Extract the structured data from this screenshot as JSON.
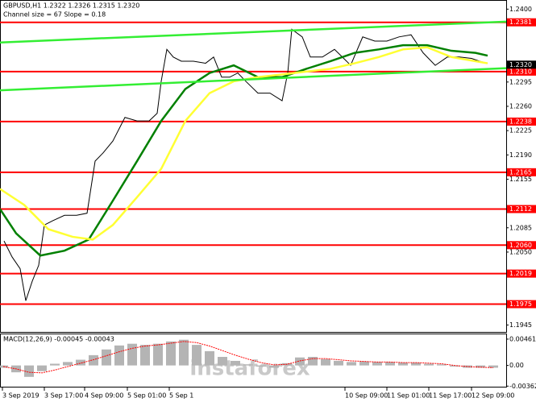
{
  "chart_data": [
    {
      "type": "line",
      "title": "GBPUSD,H1  1.2322 1.2326 1.2315 1.2320",
      "subtitle": "Channel size = 67 Slope = 0.18",
      "watermark": "instaforex",
      "xlim": [
        0,
        628
      ],
      "ylim": [
        1.1935,
        1.2412
      ],
      "yticks": [
        {
          "value": 1.24,
          "label": "1.2400"
        },
        {
          "value": 1.2295,
          "label": "1.2295"
        },
        {
          "value": 1.226,
          "label": "1.2260"
        },
        {
          "value": 1.2225,
          "label": "1.2225"
        },
        {
          "value": 1.219,
          "label": "1.2190"
        },
        {
          "value": 1.2155,
          "label": "1.2155"
        },
        {
          "value": 1.2085,
          "label": "1.2085"
        },
        {
          "value": 1.205,
          "label": "1.2050"
        },
        {
          "value": 1.1945,
          "label": "1.1945"
        }
      ],
      "xticks": [
        {
          "value": 3,
          "label": "3 Sep 2019"
        },
        {
          "value": 55,
          "label": "3 Sep 17:00"
        },
        {
          "value": 105,
          "label": "4 Sep 09:00"
        },
        {
          "value": 158,
          "label": "5 Sep 01:00"
        },
        {
          "value": 210,
          "label": "5 Sep 1"
        },
        {
          "value": 428,
          "label": "10 Sep 09:00"
        },
        {
          "value": 480,
          "label": "11 Sep 01:00"
        },
        {
          "value": 532,
          "label": "11 Sep 17:00"
        },
        {
          "value": 585,
          "label": "12 Sep 09:00"
        }
      ],
      "series": [
        {
          "color": "#000000",
          "x": [
            5,
            15,
            25,
            32,
            40,
            48,
            55,
            65,
            80,
            95,
            108,
            118,
            128,
            140,
            155,
            170,
            185,
            195,
            200,
            207,
            215,
            225,
            240,
            255,
            265,
            275,
            285,
            295,
            305,
            320,
            335,
            350,
            357,
            362,
            375,
            385,
            400,
            415,
            430,
            435,
            450,
            465,
            480,
            495,
            510,
            525,
            540,
            555,
            570,
            585,
            595,
            605
          ],
          "values": [
            1.2066,
            1.2043,
            1.2026,
            1.198,
            1.2008,
            1.2031,
            1.2089,
            1.2095,
            1.2103,
            1.2103,
            1.2106,
            1.2181,
            1.2193,
            1.221,
            1.2244,
            1.2239,
            1.2239,
            1.225,
            1.2296,
            1.2342,
            1.2331,
            1.2325,
            1.2325,
            1.2322,
            1.2331,
            1.2302,
            1.2302,
            1.2308,
            1.2296,
            1.2279,
            1.2279,
            1.2268,
            1.2308,
            1.2371,
            1.236,
            1.2331,
            1.2331,
            1.2342,
            1.2325,
            1.2319,
            1.236,
            1.2354,
            1.2354,
            1.236,
            1.2363,
            1.2337,
            1.2319,
            1.2331,
            1.2331,
            1.2329,
            1.2325,
            1.2322
          ]
        },
        {
          "color": "#008000",
          "x": [
            0,
            20,
            50,
            80,
            110,
            140,
            170,
            200,
            230,
            260,
            290,
            320,
            350,
            380,
            410,
            440,
            470,
            500,
            530,
            560,
            590,
            605
          ],
          "values": [
            1.2112,
            1.2077,
            1.2045,
            1.2052,
            1.2068,
            1.2124,
            1.2181,
            1.2239,
            1.2285,
            1.2308,
            1.2319,
            1.2302,
            1.2302,
            1.2314,
            1.2325,
            1.2337,
            1.2342,
            1.2348,
            1.2348,
            1.234,
            1.2337,
            1.2333
          ]
        },
        {
          "color": "#ffff33",
          "x": [
            0,
            30,
            60,
            90,
            115,
            140,
            170,
            200,
            230,
            260,
            290,
            320,
            350,
            380,
            410,
            440,
            470,
            500,
            530,
            560,
            590,
            605
          ],
          "values": [
            1.2141,
            1.2118,
            1.2083,
            1.2072,
            1.2068,
            1.2089,
            1.2129,
            1.217,
            1.2239,
            1.2279,
            1.2296,
            1.2302,
            1.2306,
            1.231,
            1.2314,
            1.2322,
            1.2331,
            1.2342,
            1.2345,
            1.2331,
            1.2325,
            1.2322
          ]
        },
        {
          "color": "#33ee33",
          "x": [
            0,
            628
          ],
          "values": [
            1.2352,
            1.2382
          ]
        },
        {
          "color": "#33ee33",
          "x": [
            0,
            628
          ],
          "values": [
            1.2283,
            1.2315
          ]
        }
      ],
      "levels_color": "#ff0000",
      "levels": [
        {
          "value": 1.2381,
          "label": "1.2381"
        },
        {
          "value": 1.231,
          "label": "1.2310"
        },
        {
          "value": 1.2238,
          "label": "1.2238"
        },
        {
          "value": 1.2165,
          "label": "1.2165"
        },
        {
          "value": 1.2112,
          "label": "1.2112"
        },
        {
          "value": 1.206,
          "label": "1.2060"
        },
        {
          "value": 1.2019,
          "label": "1.2019"
        },
        {
          "value": 1.1975,
          "label": "1.1975"
        }
      ],
      "last_price": {
        "value": 1.232,
        "label": "1.2320"
      }
    },
    {
      "type": "bar",
      "title": "MACD(12,26,9) -0.00045 -0.00043",
      "color": "#b4b4b4",
      "signal_color": "#ff0000",
      "xlim": [
        0,
        628
      ],
      "ylim": [
        -0.00372,
        0.00545
      ],
      "yticks": [
        0.00461,
        {
          "value": 0,
          "label": "0.00"
        },
        -0.00362
      ],
      "x": [
        4,
        20,
        36,
        52,
        68,
        84,
        100,
        116,
        132,
        148,
        164,
        180,
        196,
        212,
        228,
        244,
        260,
        276,
        292,
        308,
        324,
        340,
        356,
        372,
        388,
        404,
        420,
        436,
        452,
        468,
        484,
        500,
        516,
        532,
        548,
        564,
        580,
        596,
        612
      ],
      "values": [
        -0.0004,
        -0.0012,
        -0.002,
        -0.001,
        0.0003,
        0.0006,
        0.001,
        0.0018,
        0.0028,
        0.0035,
        0.0038,
        0.0036,
        0.0038,
        0.0042,
        0.0045,
        0.0036,
        0.0025,
        0.0015,
        0.0008,
        0.0002,
        -0.0002,
        -0.0004,
        0.0004,
        0.0014,
        0.0015,
        0.0011,
        0.0008,
        0.0006,
        0.0007,
        0.0006,
        0.0006,
        0.0005,
        0.0005,
        0.0003,
        0.0002,
        -0.0002,
        -0.0004,
        -0.0004,
        -0.0004
      ],
      "signal": [
        -0.0002,
        -0.0006,
        -0.0012,
        -0.0013,
        -0.0008,
        -0.0002,
        0.0004,
        0.001,
        0.0017,
        0.0024,
        0.003,
        0.0034,
        0.0036,
        0.0039,
        0.0042,
        0.004,
        0.0034,
        0.0026,
        0.0018,
        0.0011,
        0.0005,
        0.0001,
        0.0002,
        0.0008,
        0.0012,
        0.0012,
        0.001,
        0.0008,
        0.0007,
        0.0006,
        0.0006,
        0.0005,
        0.0005,
        0.0004,
        0.0003,
        0,
        -0.0002,
        -0.0003,
        -0.0004
      ]
    }
  ]
}
